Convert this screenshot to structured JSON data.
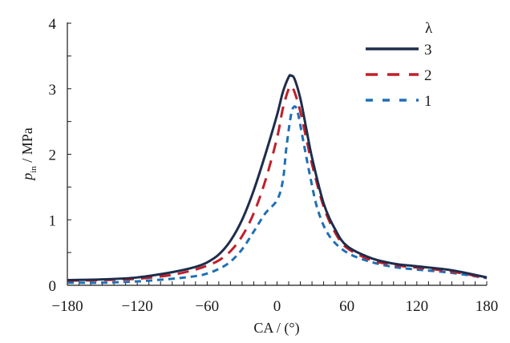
{
  "chart_data": {
    "type": "line",
    "title": "",
    "xlabel": "CA /  (°)",
    "ylabel_main": "p",
    "ylabel_sub": "in",
    "ylabel_unit": " / MPa",
    "xlim": [
      -180,
      180
    ],
    "ylim": [
      0,
      4
    ],
    "xticks": [
      -180,
      -120,
      -60,
      0,
      60,
      120,
      180
    ],
    "xtick_labels": [
      "−180",
      "−120",
      "−60",
      "0",
      "60",
      "120",
      "180"
    ],
    "x_minor_step": 10,
    "yticks": [
      0,
      1,
      2,
      3,
      4
    ],
    "ytick_labels": [
      "0",
      "1",
      "2",
      "3",
      "4"
    ],
    "y_minor_step": 0.5,
    "grid": false,
    "legend": {
      "title": "λ",
      "placement": "top-right"
    },
    "series": [
      {
        "name": "3",
        "color": "#1e2d4b",
        "style": "solid",
        "x": [
          -180,
          -150,
          -120,
          -90,
          -70,
          -60,
          -50,
          -40,
          -30,
          -20,
          -10,
          0,
          5,
          10,
          12,
          15,
          20,
          25,
          30,
          40,
          50,
          60,
          80,
          100,
          120,
          150,
          180
        ],
        "y": [
          0.08,
          0.09,
          0.12,
          0.2,
          0.28,
          0.35,
          0.47,
          0.68,
          1.0,
          1.45,
          2.0,
          2.6,
          2.95,
          3.18,
          3.2,
          3.15,
          2.85,
          2.4,
          1.95,
          1.25,
          0.85,
          0.6,
          0.42,
          0.33,
          0.29,
          0.23,
          0.12
        ]
      },
      {
        "name": "2",
        "color": "#c0202a",
        "style": "dashed",
        "x": [
          -180,
          -150,
          -120,
          -90,
          -70,
          -60,
          -50,
          -40,
          -30,
          -20,
          -10,
          0,
          5,
          10,
          12,
          15,
          20,
          25,
          30,
          40,
          50,
          60,
          80,
          100,
          120,
          150,
          180
        ],
        "y": [
          0.07,
          0.08,
          0.1,
          0.16,
          0.24,
          0.3,
          0.38,
          0.52,
          0.75,
          1.1,
          1.6,
          2.25,
          2.7,
          3.0,
          3.03,
          2.95,
          2.65,
          2.25,
          1.85,
          1.2,
          0.8,
          0.57,
          0.39,
          0.31,
          0.27,
          0.21,
          0.11
        ]
      },
      {
        "name": "1",
        "color": "#1f6fb5",
        "style": "short-dashed",
        "x": [
          -180,
          -150,
          -120,
          -90,
          -70,
          -60,
          -50,
          -40,
          -30,
          -20,
          -10,
          0,
          5,
          8,
          12,
          15,
          18,
          22,
          28,
          35,
          45,
          60,
          80,
          100,
          120,
          150,
          180
        ],
        "y": [
          0.04,
          0.04,
          0.06,
          0.1,
          0.14,
          0.18,
          0.25,
          0.36,
          0.55,
          0.82,
          1.1,
          1.3,
          1.6,
          2.1,
          2.6,
          2.73,
          2.62,
          2.25,
          1.7,
          1.15,
          0.75,
          0.5,
          0.36,
          0.28,
          0.24,
          0.19,
          0.11
        ]
      }
    ]
  }
}
